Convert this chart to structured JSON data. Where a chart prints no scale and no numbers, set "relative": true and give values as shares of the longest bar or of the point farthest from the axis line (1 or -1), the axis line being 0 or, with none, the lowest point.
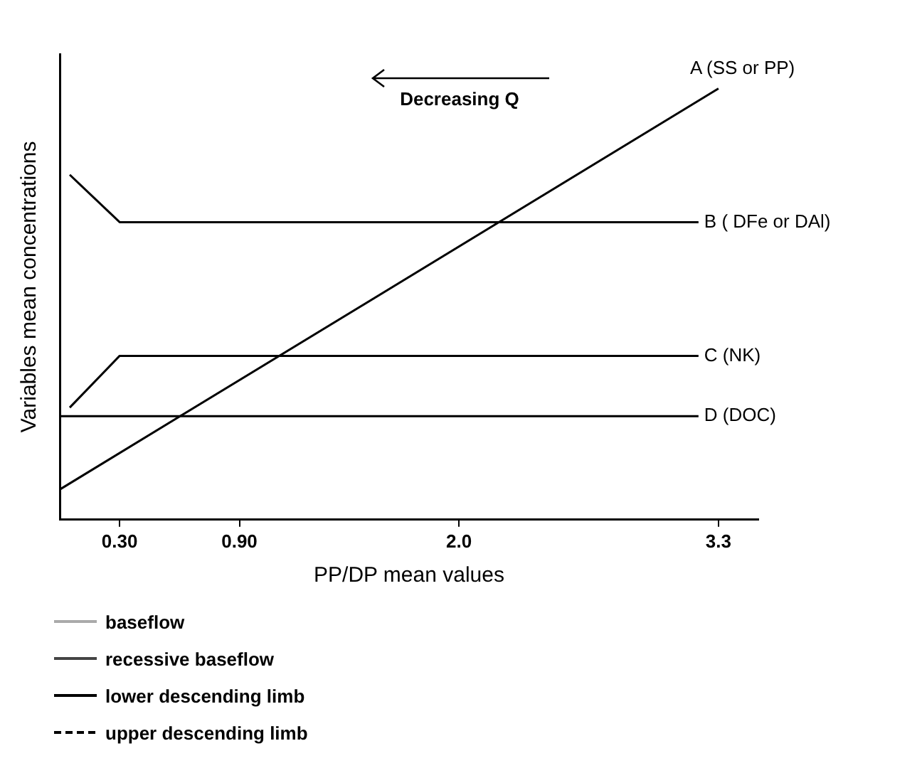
{
  "chart_data": {
    "type": "line",
    "relative": true,
    "xlabel": "PP/DP mean values",
    "ylabel": "Variables mean concentrations",
    "series": [
      {
        "name": "A (SS or PP)",
        "color": "#000000",
        "x": [
          0,
          3.3
        ],
        "values": [
          0.07,
          1
        ]
      },
      {
        "name": "B ( DFe or DAl)",
        "color": "#000000",
        "x": [
          0.05,
          0.3,
          3.2
        ],
        "values": [
          0.8,
          0.69,
          0.69
        ]
      },
      {
        "name": "C (NK)",
        "color": "#000000",
        "x": [
          0.05,
          0.3,
          3.2
        ],
        "values": [
          0.26,
          0.38,
          0.38
        ]
      },
      {
        "name": "D (DOC)",
        "color": "#000000",
        "x": [
          0,
          3.2
        ],
        "values": [
          0.24,
          0.24
        ]
      }
    ],
    "xlim": [
      0,
      3.5
    ],
    "xticks": [
      {
        "value": 0.3,
        "label": "0.30"
      },
      {
        "value": 0.9,
        "label": "0.90"
      },
      {
        "value": 2.0,
        "label": "2.0"
      },
      {
        "value": 3.3,
        "label": "3.3"
      }
    ],
    "grid": false,
    "legend": false,
    "tick_labels": "x",
    "marker": "none",
    "line_style": "solid",
    "annotations": [
      "Decreasing Q",
      "baseflow",
      "recessive baseflow",
      "lower descending limb",
      "upper descending limb"
    ]
  }
}
